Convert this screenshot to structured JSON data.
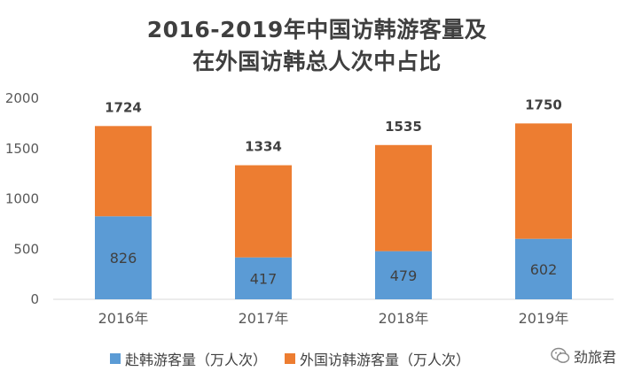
{
  "title_line1": "2016-2019年中国访韩游客量及",
  "title_line2": "在外国访韩总人次中占比",
  "watermark": "劲旅君",
  "chart_data": {
    "type": "bar",
    "stacked": true,
    "categories": [
      "2016年",
      "2017年",
      "2018年",
      "2019年"
    ],
    "series": [
      {
        "name": "赴韩游客量（万人次）",
        "values": [
          826,
          417,
          479,
          602
        ],
        "color": "#5b9bd5"
      },
      {
        "name": "外国访韩游客量（万人次）",
        "values": [
          898,
          917,
          1056,
          1148
        ],
        "color": "#ed7d31"
      }
    ],
    "totals": [
      1724,
      1334,
      1535,
      1750
    ],
    "ylim": [
      0,
      2000
    ],
    "yticks": [
      0,
      500,
      1000,
      1500,
      2000
    ],
    "grid": false,
    "legend": "bottom"
  }
}
